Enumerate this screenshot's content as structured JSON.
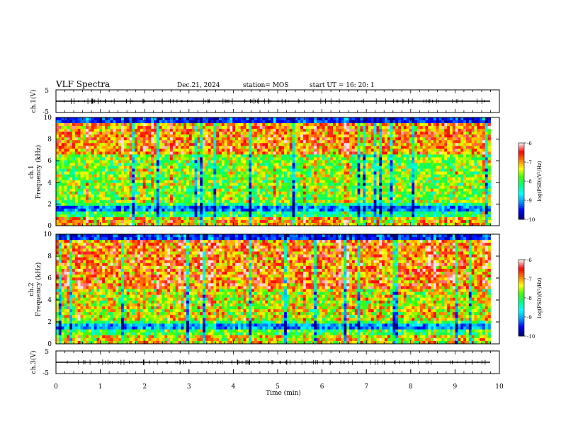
{
  "header": {
    "title": "VLF Spectra",
    "date": "Dec.21, 2024",
    "station": "station= MOS",
    "start_ut": "start  UT  =    16: 20: 1"
  },
  "chart_data": [
    {
      "type": "line",
      "name": "ch1-waveform",
      "ylabel": "ch.1(V)",
      "yticks": [
        "5",
        "-5"
      ],
      "ylim": [
        -5,
        5
      ],
      "baseline_value": 0
    },
    {
      "type": "heatmap",
      "name": "ch1-spectrogram",
      "ylabel": "ch.1\nFrequency (kHz)",
      "ylabel_lines": [
        "ch.1",
        "Frequency (kHz)"
      ],
      "yticks": [
        "0",
        "2",
        "4",
        "6",
        "8",
        "10"
      ],
      "ylim": [
        0,
        10
      ],
      "xlim": [
        0,
        10
      ],
      "data_extent_min": 9.8,
      "colorbar": {
        "label": "log(PSD)(V²/Hz)",
        "ticks": [
          "-6",
          "-7",
          "-8",
          "-9",
          "-10"
        ],
        "range": [
          -10,
          -6
        ]
      },
      "description_bands_khz": {
        "dark_top": [
          9.3,
          10
        ],
        "strong_band": [
          6.5,
          9
        ],
        "mid_band": [
          2,
          6.5
        ],
        "dark_low_band": [
          1.2,
          1.8
        ],
        "bright_bottom": [
          0,
          0.8
        ]
      }
    },
    {
      "type": "heatmap",
      "name": "ch2-spectrogram",
      "ylabel_lines": [
        "ch.2",
        "Frequency (kHz)"
      ],
      "yticks": [
        "0",
        "2",
        "4",
        "6",
        "8",
        "10"
      ],
      "ylim": [
        0,
        10
      ],
      "xlim": [
        0,
        10
      ],
      "data_extent_min": 9.8,
      "colorbar": {
        "label": "log(PSD)(V²/Hz)",
        "ticks": [
          "-6",
          "-7",
          "-8",
          "-9",
          "-10"
        ],
        "range": [
          -10,
          -6
        ]
      }
    },
    {
      "type": "line",
      "name": "ch3-waveform",
      "ylabel": "ch.3(V)",
      "yticks": [
        "5",
        "-5"
      ],
      "ylim": [
        -5,
        5
      ],
      "baseline_value": 0
    }
  ],
  "xaxis": {
    "label": "Time  (min)",
    "ticks": [
      "0",
      "1",
      "2",
      "3",
      "4",
      "5",
      "6",
      "7",
      "8",
      "9",
      "10"
    ],
    "range": [
      0,
      10
    ]
  },
  "colors": {
    "colormap": [
      "#000080",
      "#0000ff",
      "#00a0ff",
      "#00ffff",
      "#00ff80",
      "#40ff00",
      "#ffff00",
      "#ff8000",
      "#ff0000",
      "#ffe0e0"
    ]
  }
}
